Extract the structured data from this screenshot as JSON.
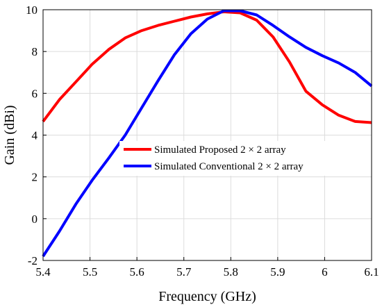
{
  "chart_data": {
    "type": "line",
    "title": "",
    "xlabel": "Frequency (GHz)",
    "ylabel": "Gain (dBi)",
    "xlim": [
      5.4,
      6.1
    ],
    "ylim": [
      -2,
      10
    ],
    "xticks": [
      "5.4",
      "5.5",
      "5.6",
      "5.7",
      "5.8",
      "5.9",
      "6",
      "6.1"
    ],
    "yticks": [
      "-2",
      "0",
      "2",
      "4",
      "6",
      "8",
      "10"
    ],
    "grid": true,
    "legend_position": "center-right",
    "series": [
      {
        "name": "Simulated  Proposed 2 × 2 array",
        "color": "#ff0000",
        "x": [
          5.4,
          5.435,
          5.47,
          5.505,
          5.54,
          5.575,
          5.61,
          5.645,
          5.68,
          5.715,
          5.75,
          5.785,
          5.82,
          5.855,
          5.89,
          5.925,
          5.96,
          5.995,
          6.03,
          6.065,
          6.1
        ],
        "y": [
          4.65,
          5.7,
          6.55,
          7.4,
          8.1,
          8.65,
          9.0,
          9.25,
          9.45,
          9.65,
          9.8,
          9.9,
          9.85,
          9.5,
          8.7,
          7.5,
          6.1,
          5.45,
          4.95,
          4.65,
          4.6
        ]
      },
      {
        "name": "Simulated Conventional 2 × 2 array",
        "color": "#0000ff",
        "x": [
          5.4,
          5.435,
          5.47,
          5.505,
          5.54,
          5.575,
          5.61,
          5.645,
          5.68,
          5.715,
          5.75,
          5.785,
          5.82,
          5.855,
          5.89,
          5.925,
          5.96,
          5.995,
          6.03,
          6.065,
          6.1
        ],
        "y": [
          -1.8,
          -0.6,
          0.7,
          1.85,
          2.9,
          4.0,
          5.3,
          6.6,
          7.85,
          8.85,
          9.55,
          9.95,
          9.95,
          9.75,
          9.25,
          8.7,
          8.2,
          7.8,
          7.45,
          7.0,
          6.35
        ]
      }
    ]
  }
}
